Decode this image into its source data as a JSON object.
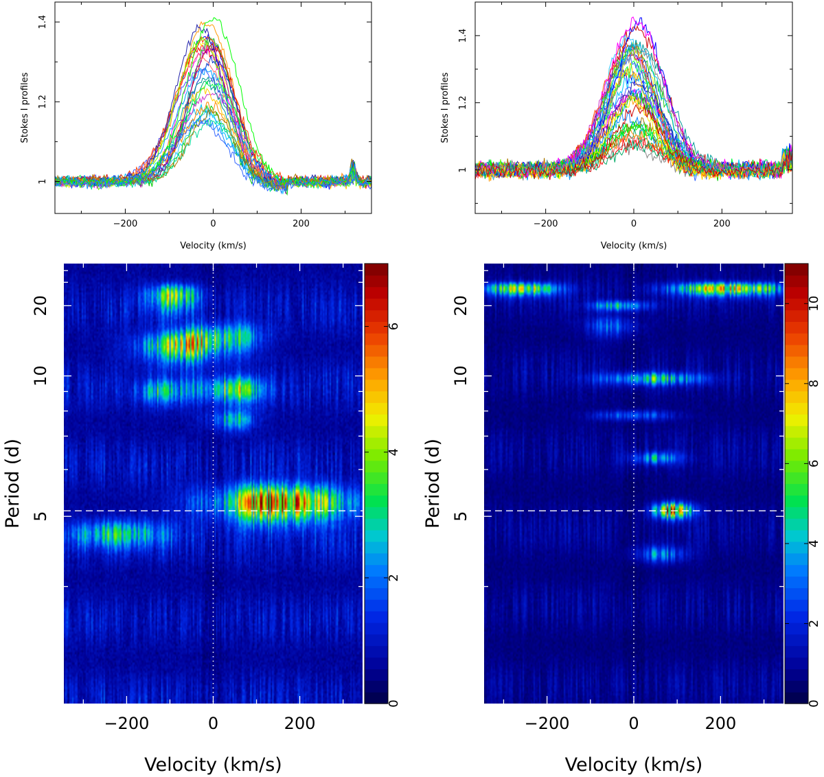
{
  "chart_data": [
    {
      "type": "line",
      "panel": "top-left",
      "xlabel": "Velocity (km/s)",
      "ylabel": "Stokes I profiles",
      "xlim": [
        -360,
        360
      ],
      "ylim": [
        0.92,
        1.45
      ],
      "xticks": [
        -200,
        0,
        200
      ],
      "yticks": [
        1,
        1.2,
        1.4
      ],
      "xtick_labels": [
        "−200",
        "0",
        "200"
      ],
      "ytick_labels": [
        "1",
        "1.2",
        "1.4"
      ],
      "n_profiles": 30,
      "peak_velocity": -15,
      "peak_range": [
        1.15,
        1.41
      ],
      "bump_velocity": 318,
      "colors": [
        "#ff0000",
        "#00cc00",
        "#0000ff",
        "#00bfff",
        "#ff00ff",
        "#ff9900",
        "#ffee00",
        "#888888",
        "#00aa66",
        "#cc0000",
        "#22cc22",
        "#0033cc",
        "#33ccff",
        "#cc33cc",
        "#ffcc00",
        "#4455ff",
        "#00ff44",
        "#ff4400",
        "#1188ff",
        "#aa00aa",
        "#00dd99",
        "#ff6666",
        "#2222aa",
        "#66ff00",
        "#ff8800",
        "#009999",
        "#aa7700",
        "#0099ff",
        "#00ff00",
        "#3366ff"
      ]
    },
    {
      "type": "line",
      "panel": "top-right",
      "xlabel": "Velocity (km/s)",
      "ylabel": "Stokes I profiles",
      "xlim": [
        -360,
        360
      ],
      "ylim": [
        0.87,
        1.5
      ],
      "xticks": [
        -200,
        0,
        200
      ],
      "yticks": [
        1,
        1.2,
        1.4
      ],
      "xtick_labels": [
        "−200",
        "0",
        "200"
      ],
      "ytick_labels": [
        "1",
        "1.2",
        "1.4"
      ],
      "n_profiles": 40,
      "peak_velocity": 0,
      "peak_range": [
        1.07,
        1.45
      ],
      "colors": [
        "#ff0000",
        "#00cc00",
        "#0000ff",
        "#00bfff",
        "#ff00ff",
        "#ff9900",
        "#ffee00",
        "#888888",
        "#00aa66",
        "#cc0000",
        "#22cc22",
        "#0033cc",
        "#33ccff",
        "#cc33cc",
        "#ffcc00",
        "#4455ff",
        "#00ff44",
        "#ff4400",
        "#1188ff",
        "#aa00aa",
        "#00dd99",
        "#ff6666",
        "#2222aa",
        "#66ff00",
        "#ff8800",
        "#009999",
        "#aa7700",
        "#0099ff",
        "#00ff00",
        "#3366ff"
      ]
    },
    {
      "type": "heatmap",
      "panel": "bottom-left",
      "xlabel": "Velocity (km/s)",
      "ylabel": "Period (d)",
      "xlim": [
        -345,
        345
      ],
      "y_scale": "reciprocal",
      "ylim": [
        3.0,
        50.0
      ],
      "xticks": [
        -200,
        0,
        200
      ],
      "yticks": [
        5,
        10,
        20
      ],
      "xtick_labels": [
        "−200",
        "0",
        "200"
      ],
      "ytick_labels": [
        "5",
        "10",
        "20"
      ],
      "colorbar_range": [
        0,
        7
      ],
      "colorbar_ticks": [
        0,
        2,
        4,
        6
      ],
      "colorbar_tick_labels": [
        "0",
        "2",
        "4",
        "6"
      ],
      "reference_period": 5.1,
      "reference_velocity": 0,
      "features": [
        {
          "v": 150,
          "P": 5.25,
          "dv": 110,
          "dP": 0.25,
          "power": 6.8
        },
        {
          "v": 40,
          "P": 9.1,
          "dv": 50,
          "dP": 0.55,
          "power": 4.6
        },
        {
          "v": -70,
          "P": 12.7,
          "dv": 70,
          "dP": 1.2,
          "power": 4.5
        },
        {
          "v": 20,
          "P": 14.0,
          "dv": 60,
          "dP": 1.4,
          "power": 3.6
        },
        {
          "v": -90,
          "P": 23.5,
          "dv": 40,
          "dP": 3.5,
          "power": 4.2
        },
        {
          "v": 40,
          "P": 7.6,
          "dv": 35,
          "dP": 0.3,
          "power": 3.4
        },
        {
          "v": -120,
          "P": 9.0,
          "dv": 40,
          "dP": 0.5,
          "power": 2.8
        },
        {
          "v": -220,
          "P": 4.7,
          "dv": 80,
          "dP": 0.15,
          "power": 3.0
        }
      ]
    },
    {
      "type": "heatmap",
      "panel": "bottom-right",
      "xlabel": "Velocity (km/s)",
      "ylabel": "Period (d)",
      "xlim": [
        -345,
        345
      ],
      "y_scale": "reciprocal",
      "ylim": [
        3.0,
        50.0
      ],
      "xticks": [
        -200,
        0,
        200
      ],
      "yticks": [
        5,
        10,
        20
      ],
      "xtick_labels": [
        "−200",
        "0",
        "200"
      ],
      "ytick_labels": [
        "5",
        "10",
        "20"
      ],
      "colorbar_range": [
        0,
        11
      ],
      "colorbar_ticks": [
        0,
        2,
        4,
        6,
        8,
        10
      ],
      "colorbar_tick_labels": [
        "0",
        "2",
        "4",
        "6",
        "8",
        "10"
      ],
      "reference_period": 5.1,
      "reference_velocity": 0,
      "features": [
        {
          "v": 90,
          "P": 5.1,
          "dv": 30,
          "dP": 0.1,
          "power": 10.8
        },
        {
          "v": 220,
          "P": 26.5,
          "dv": 90,
          "dP": 2.2,
          "power": 9.0
        },
        {
          "v": -260,
          "P": 26.5,
          "dv": 60,
          "dP": 2.2,
          "power": 7.5
        },
        {
          "v": -30,
          "P": 20.0,
          "dv": 45,
          "dP": 1.0,
          "power": 5.6
        },
        {
          "v": 40,
          "P": 9.8,
          "dv": 80,
          "dP": 0.3,
          "power": 5.8
        },
        {
          "v": 50,
          "P": 6.3,
          "dv": 40,
          "dP": 0.12,
          "power": 4.6
        },
        {
          "v": 60,
          "P": 4.4,
          "dv": 40,
          "dP": 0.08,
          "power": 4.0
        },
        {
          "v": -50,
          "P": 15.5,
          "dv": 40,
          "dP": 1.2,
          "power": 3.5
        },
        {
          "v": 0,
          "P": 7.8,
          "dv": 60,
          "dP": 0.15,
          "power": 3.8
        }
      ]
    }
  ]
}
